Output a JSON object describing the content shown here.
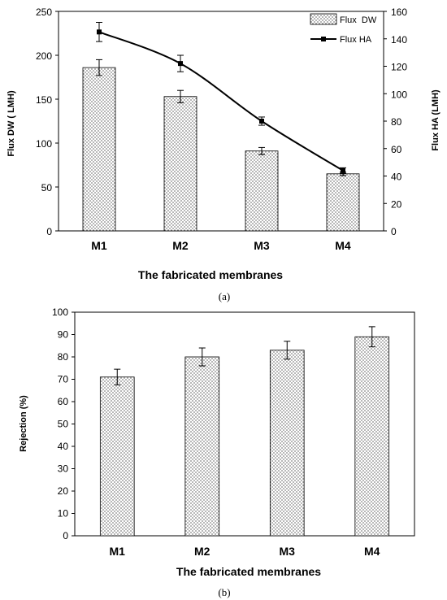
{
  "chart_data": [
    {
      "type": "bar",
      "panel_label": "(a)",
      "categories": [
        "M1",
        "M2",
        "M3",
        "M4"
      ],
      "xlabel": "The fabricated membranes",
      "ylabel": "Flux DW ( LMH)",
      "y2label": "Flux HA (LMH)",
      "ylim": [
        0,
        250
      ],
      "y2lim": [
        0,
        160
      ],
      "yticks": [
        "0",
        "50",
        "100",
        "150",
        "200",
        "250"
      ],
      "y2ticks": [
        "0",
        "20",
        "40",
        "60",
        "80",
        "100",
        "120",
        "140",
        "160"
      ],
      "legend_position": "top-right",
      "series": [
        {
          "name": "Flux  DW",
          "kind": "bar",
          "axis": "left",
          "values": [
            186,
            153,
            91,
            65
          ],
          "errors": [
            9,
            7,
            4,
            2
          ]
        },
        {
          "name": "Flux HA",
          "kind": "line",
          "axis": "right",
          "values": [
            145,
            122,
            80,
            44
          ],
          "errors": [
            7,
            6,
            3,
            2
          ]
        }
      ]
    },
    {
      "type": "bar",
      "panel_label": "(b)",
      "categories": [
        "M1",
        "M2",
        "M3",
        "M4"
      ],
      "xlabel": "The fabricated membranes",
      "ylabel": "Rejection (%)",
      "ylim": [
        0,
        100
      ],
      "yticks": [
        "0",
        "10",
        "20",
        "30",
        "40",
        "50",
        "60",
        "70",
        "80",
        "90",
        "100"
      ],
      "grid": false,
      "series": [
        {
          "name": "",
          "kind": "bar",
          "values": [
            71,
            80,
            83,
            89
          ],
          "errors": [
            3.5,
            4,
            4,
            4.5
          ]
        }
      ]
    }
  ]
}
